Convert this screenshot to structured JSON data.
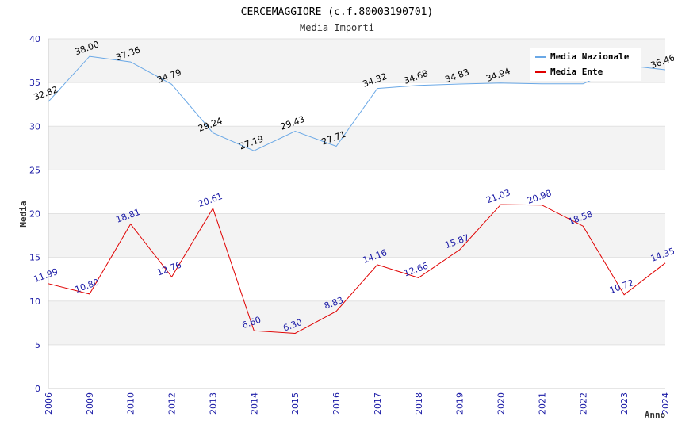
{
  "chart_data": {
    "type": "line",
    "title": "CERCEMAGGIORE (c.f.80003190701)",
    "subtitle": "Media Importi",
    "xlabel": "Anno",
    "ylabel": "Media",
    "ylim": [
      0,
      40
    ],
    "yticks": [
      "0",
      "5",
      "10",
      "15",
      "20",
      "25",
      "30",
      "35",
      "40"
    ],
    "categories": [
      "2006",
      "2009",
      "2010",
      "2012",
      "2013",
      "2014",
      "2015",
      "2016",
      "2017",
      "2018",
      "2019",
      "2020",
      "2021",
      "2022",
      "2023",
      "2024"
    ],
    "legend_position": "top-right",
    "series": [
      {
        "name": "Media Nazionale",
        "color": "#6aa8e6",
        "label_color": "#000000",
        "values": [
          32.82,
          38.0,
          37.36,
          34.79,
          29.24,
          27.19,
          29.43,
          27.71,
          34.32,
          34.68,
          34.83,
          34.94,
          34.85,
          34.85,
          37.0,
          36.46
        ],
        "labels": [
          "32.82",
          "38.00",
          "37.36",
          "34.79",
          "29.24",
          "27.19",
          "29.43",
          "27.71",
          "34.32",
          "34.68",
          "34.83",
          "34.94",
          "",
          "",
          "",
          "36.46"
        ]
      },
      {
        "name": "Media Ente",
        "color": "#e00000",
        "label_color": "#1a1aa6",
        "values": [
          11.99,
          10.8,
          18.81,
          12.76,
          20.61,
          6.6,
          6.3,
          8.83,
          14.16,
          12.66,
          15.87,
          21.03,
          20.98,
          18.58,
          10.72,
          14.35
        ],
        "labels": [
          "11.99",
          "10.80",
          "18.81",
          "12.76",
          "20.61",
          "6.60",
          "6.30",
          "8.83",
          "14.16",
          "12.66",
          "15.87",
          "21.03",
          "20.98",
          "18.58",
          "10.72",
          "14.35"
        ]
      }
    ]
  }
}
